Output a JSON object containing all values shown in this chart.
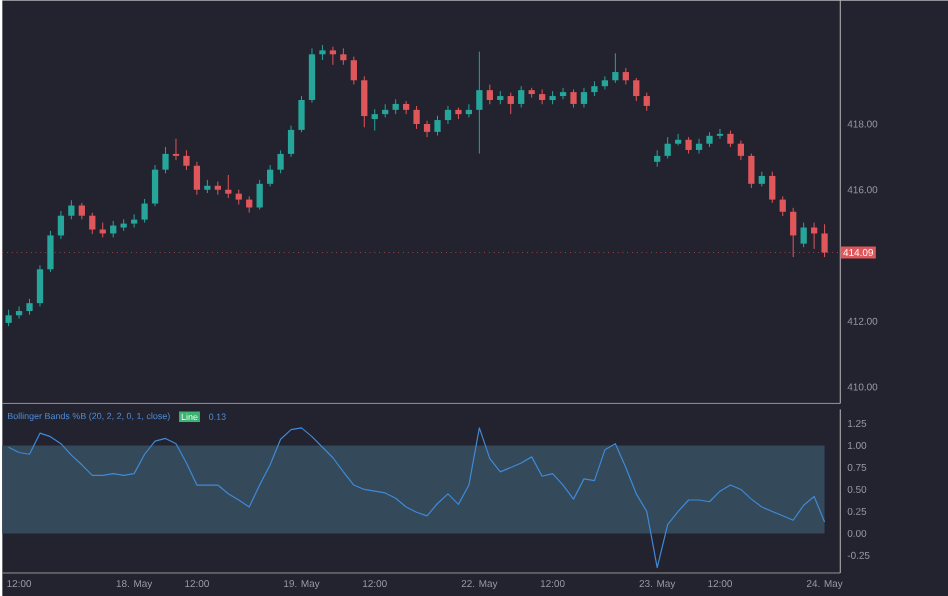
{
  "chart_data": [
    {
      "type": "candlestick",
      "tick_labels": "y",
      "categories": [
        null,
        null,
        null,
        null,
        null,
        null,
        null,
        null,
        null,
        null,
        null,
        null,
        null,
        null,
        null,
        null,
        null,
        null,
        null,
        null,
        null,
        null,
        null,
        null,
        null,
        null,
        null,
        null,
        null,
        null,
        null,
        null,
        null,
        null,
        null,
        null,
        null,
        null,
        null,
        null,
        null,
        null,
        null,
        null,
        null,
        null,
        null,
        null,
        null,
        null,
        null,
        null,
        null,
        null,
        null,
        null,
        null,
        null,
        null,
        null,
        null,
        null,
        null,
        null,
        null,
        null,
        null,
        null,
        null,
        null,
        null,
        null,
        null,
        null,
        null,
        null,
        null,
        null,
        null
      ],
      "ohlc": [
        [
          411.95,
          412.35,
          411.85,
          412.18
        ],
        [
          412.18,
          412.45,
          412.08,
          412.31
        ],
        [
          412.31,
          412.68,
          412.2,
          412.55
        ],
        [
          412.55,
          413.7,
          412.45,
          413.58
        ],
        [
          413.58,
          414.75,
          413.5,
          414.61
        ],
        [
          414.61,
          415.35,
          414.5,
          415.21
        ],
        [
          415.21,
          415.68,
          415.1,
          415.52
        ],
        [
          415.52,
          415.6,
          415.1,
          415.21
        ],
        [
          415.21,
          415.3,
          414.65,
          414.79
        ],
        [
          414.79,
          415.0,
          414.55,
          414.67
        ],
        [
          414.67,
          415.05,
          414.55,
          414.91
        ],
        [
          414.85,
          415.1,
          414.75,
          414.97
        ],
        [
          414.97,
          415.25,
          414.85,
          415.09
        ],
        [
          415.09,
          415.72,
          415.0,
          415.58
        ],
        [
          415.58,
          416.75,
          415.5,
          416.61
        ],
        [
          416.61,
          417.3,
          416.5,
          417.09
        ],
        [
          417.09,
          417.55,
          416.9,
          417.03
        ],
        [
          417.03,
          417.2,
          416.6,
          416.73
        ],
        [
          416.73,
          416.85,
          415.85,
          416.0
        ],
        [
          416.0,
          416.3,
          415.9,
          416.12
        ],
        [
          416.12,
          416.25,
          415.85,
          416.0
        ],
        [
          416.0,
          416.45,
          415.75,
          415.88
        ],
        [
          415.88,
          416.0,
          415.55,
          415.7
        ],
        [
          415.7,
          415.8,
          415.3,
          415.46
        ],
        [
          415.46,
          416.3,
          415.4,
          416.18
        ],
        [
          416.18,
          416.75,
          416.1,
          416.61
        ],
        [
          416.61,
          417.2,
          416.5,
          417.09
        ],
        [
          417.09,
          417.95,
          417.0,
          417.82
        ],
        [
          417.82,
          418.85,
          417.75,
          418.73
        ],
        [
          418.73,
          420.3,
          418.65,
          420.12
        ],
        [
          420.12,
          420.4,
          419.95,
          420.24
        ],
        [
          420.24,
          420.35,
          419.8,
          420.12
        ],
        [
          420.12,
          420.3,
          419.8,
          419.94
        ],
        [
          419.94,
          420.05,
          419.2,
          419.33
        ],
        [
          419.33,
          419.45,
          417.9,
          418.24
        ],
        [
          418.15,
          418.45,
          417.8,
          418.3
        ],
        [
          418.3,
          418.6,
          418.2,
          418.43
        ],
        [
          418.43,
          418.75,
          418.3,
          418.61
        ],
        [
          418.61,
          418.7,
          418.3,
          418.43
        ],
        [
          418.43,
          418.55,
          417.85,
          418.0
        ],
        [
          418.0,
          418.1,
          417.6,
          417.76
        ],
        [
          417.76,
          418.25,
          417.65,
          418.12
        ],
        [
          418.12,
          418.55,
          418.0,
          418.43
        ],
        [
          418.43,
          418.5,
          418.15,
          418.3
        ],
        [
          418.3,
          418.6,
          418.2,
          418.43
        ],
        [
          418.43,
          420.2,
          417.1,
          419.03
        ],
        [
          419.03,
          419.2,
          418.6,
          418.73
        ],
        [
          418.73,
          419.0,
          418.6,
          418.85
        ],
        [
          418.85,
          418.95,
          418.3,
          418.61
        ],
        [
          418.61,
          419.15,
          418.5,
          419.03
        ],
        [
          419.03,
          419.1,
          418.8,
          418.91
        ],
        [
          418.91,
          419.05,
          418.6,
          418.73
        ],
        [
          418.73,
          419.0,
          418.6,
          418.85
        ],
        [
          418.85,
          419.1,
          418.75,
          418.97
        ],
        [
          418.97,
          419.05,
          418.5,
          418.61
        ],
        [
          418.61,
          419.1,
          418.5,
          418.97
        ],
        [
          418.97,
          419.3,
          418.85,
          419.15
        ],
        [
          419.15,
          419.45,
          419.05,
          419.33
        ],
        [
          419.33,
          420.15,
          419.25,
          419.58
        ],
        [
          419.58,
          419.7,
          419.2,
          419.33
        ],
        [
          419.33,
          419.4,
          418.7,
          418.85
        ],
        [
          418.85,
          418.95,
          418.4,
          418.55
        ],
        [
          416.85,
          417.2,
          416.7,
          417.03
        ],
        [
          417.03,
          417.6,
          416.95,
          417.4
        ],
        [
          417.4,
          417.7,
          417.35,
          417.52
        ],
        [
          417.52,
          417.6,
          417.1,
          417.21
        ],
        [
          417.21,
          417.55,
          417.1,
          417.4
        ],
        [
          417.4,
          417.75,
          417.3,
          417.64
        ],
        [
          417.64,
          417.85,
          417.55,
          417.7
        ],
        [
          417.7,
          417.8,
          417.3,
          417.4
        ],
        [
          417.4,
          417.5,
          416.9,
          417.03
        ],
        [
          417.03,
          417.1,
          416.05,
          416.18
        ],
        [
          416.18,
          416.55,
          416.1,
          416.42
        ],
        [
          416.42,
          416.55,
          415.6,
          415.7
        ],
        [
          415.7,
          415.8,
          415.2,
          415.33
        ],
        [
          415.33,
          415.45,
          413.95,
          414.61
        ],
        [
          414.36,
          415.0,
          414.25,
          414.85
        ],
        [
          414.85,
          415.0,
          414.2,
          414.67
        ],
        [
          414.67,
          414.95,
          413.95,
          414.09
        ]
      ],
      "ylim": [
        409.5,
        421.76
      ],
      "yticks": [
        {
          "value": 410,
          "label": "410.00"
        },
        {
          "value": 412,
          "label": "412.00"
        },
        {
          "value": 416,
          "label": "416.00"
        },
        {
          "value": 418,
          "label": "418.00"
        }
      ],
      "ref_lines": [
        {
          "axis": "y",
          "value": 414.09,
          "label": "414.09",
          "color": "#e0575b"
        }
      ]
    },
    {
      "type": "line",
      "title": "Bollinger Bands %B (20, 2, 2, 0, 1, close)",
      "annotations": [
        "Line",
        "0.13"
      ],
      "categories": [
        null,
        "12:00",
        null,
        null,
        null,
        null,
        null,
        null,
        null,
        null,
        null,
        null,
        "18. May",
        null,
        null,
        null,
        null,
        null,
        "12:00",
        null,
        null,
        null,
        null,
        null,
        null,
        null,
        null,
        null,
        "19. May",
        null,
        null,
        null,
        null,
        null,
        null,
        "12:00",
        null,
        null,
        null,
        null,
        null,
        null,
        null,
        null,
        null,
        "22. May",
        null,
        null,
        null,
        null,
        null,
        null,
        "12:00",
        null,
        null,
        null,
        null,
        null,
        null,
        null,
        null,
        null,
        "23. May",
        null,
        null,
        null,
        null,
        null,
        "12:00",
        null,
        null,
        null,
        null,
        null,
        null,
        null,
        null,
        null,
        "24. May"
      ],
      "series": [
        {
          "color": "#3f8ad8",
          "values": [
            0.98,
            0.92,
            0.9,
            1.14,
            1.1,
            1.02,
            0.89,
            0.78,
            0.66,
            0.66,
            0.68,
            0.66,
            0.68,
            0.9,
            1.05,
            1.08,
            1.02,
            0.8,
            0.55,
            0.55,
            0.55,
            0.45,
            0.38,
            0.3,
            0.55,
            0.78,
            1.07,
            1.18,
            1.2,
            1.1,
            0.98,
            0.86,
            0.7,
            0.55,
            0.5,
            0.48,
            0.46,
            0.4,
            0.3,
            0.24,
            0.2,
            0.34,
            0.45,
            0.33,
            0.55,
            1.2,
            0.85,
            0.7,
            0.75,
            0.8,
            0.87,
            0.65,
            0.68,
            0.55,
            0.39,
            0.62,
            0.6,
            0.95,
            1.02,
            0.75,
            0.45,
            0.25,
            -0.39,
            0.1,
            0.25,
            0.38,
            0.38,
            0.36,
            0.48,
            0.55,
            0.5,
            0.39,
            0.3,
            0.25,
            0.2,
            0.15,
            0.32,
            0.42,
            0.13
          ]
        }
      ],
      "ylim": [
        -0.45,
        1.41
      ],
      "yticks": [
        {
          "value": -0.25,
          "label": "-0.25"
        },
        {
          "value": 0,
          "label": "0.00"
        },
        {
          "value": 0.25,
          "label": "0.25"
        },
        {
          "value": 0.5,
          "label": "0.50"
        },
        {
          "value": 0.75,
          "label": "0.75"
        },
        {
          "value": 1,
          "label": "1.00"
        },
        {
          "value": 1.25,
          "label": "1.25"
        }
      ],
      "bands": [
        {
          "axis": "y",
          "from": 0,
          "to": 1,
          "color": "#34495a"
        }
      ]
    }
  ]
}
